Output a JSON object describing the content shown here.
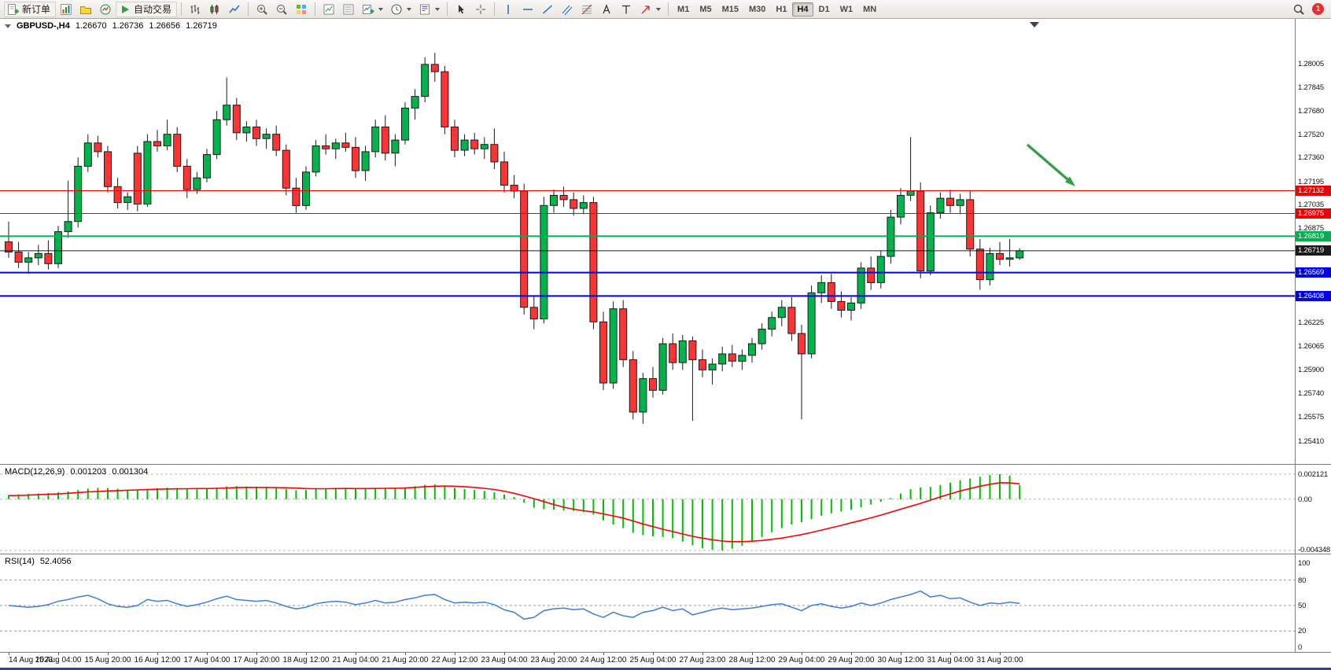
{
  "toolbar": {
    "new_order": "新订单",
    "auto_trading": "自动交易",
    "timeframes": [
      "M1",
      "M5",
      "M15",
      "M30",
      "H1",
      "H4",
      "D1",
      "W1",
      "MN"
    ],
    "active_timeframe": "H4",
    "notification_count": "1"
  },
  "chart": {
    "symbol": "GBPUSD-,H4",
    "open": "1.26670",
    "high": "1.26736",
    "low": "1.26656",
    "close": "1.26719",
    "price_axis": [
      "1.28005",
      "1.27845",
      "1.27680",
      "1.27520",
      "1.27360",
      "1.27195",
      "1.27035",
      "1.26875",
      "1.26710",
      "1.26550",
      "1.26390",
      "1.26225",
      "1.26065",
      "1.25900",
      "1.25740",
      "1.25575",
      "1.25410"
    ],
    "price_max": 1.28005,
    "price_min": 1.2541,
    "up_color": "#00b44c",
    "down_color": "#ff3333",
    "wick_color": "#1a1a1a",
    "arrow_color": "#2f9e44",
    "levels": [
      {
        "price": 1.27132,
        "label": "1.27132",
        "color": "#ee0000",
        "width": 1
      },
      {
        "price": 1.26975,
        "label": "1.26975",
        "color": "#ee0000",
        "width": 1
      },
      {
        "price": 1.26819,
        "label": "1.26819",
        "color": "#00b050",
        "width": 2
      },
      {
        "price": 1.26719,
        "label": "1.26719",
        "color": "#1a1a1a",
        "width": 1
      },
      {
        "price": 1.26569,
        "label": "1.26569",
        "color": "#0000ee",
        "width": 2
      },
      {
        "price": 1.26408,
        "label": "1.26408",
        "color": "#0000ee",
        "width": 2
      }
    ],
    "candles": [
      [
        1.2678,
        1.2692,
        1.2667,
        1.2671
      ],
      [
        1.2671,
        1.2678,
        1.266,
        1.2664
      ],
      [
        1.2664,
        1.2671,
        1.2656,
        1.2667
      ],
      [
        1.2667,
        1.2676,
        1.2662,
        1.267
      ],
      [
        1.267,
        1.2679,
        1.2659,
        1.2663
      ],
      [
        1.2663,
        1.2689,
        1.266,
        1.2685
      ],
      [
        1.2685,
        1.272,
        1.2681,
        1.2692
      ],
      [
        1.2692,
        1.2736,
        1.2688,
        1.273
      ],
      [
        1.273,
        1.2752,
        1.2726,
        1.2746
      ],
      [
        1.2746,
        1.2751,
        1.2736,
        1.274
      ],
      [
        1.274,
        1.2744,
        1.2712,
        1.2716
      ],
      [
        1.2716,
        1.2722,
        1.2701,
        1.2705
      ],
      [
        1.2705,
        1.2712,
        1.27,
        1.2709
      ],
      [
        1.2739,
        1.2744,
        1.2699,
        1.2704
      ],
      [
        1.2704,
        1.2752,
        1.2702,
        1.2747
      ],
      [
        1.2747,
        1.2755,
        1.274,
        1.2744
      ],
      [
        1.2744,
        1.2762,
        1.2741,
        1.2752
      ],
      [
        1.2752,
        1.2757,
        1.2726,
        1.273
      ],
      [
        1.273,
        1.2735,
        1.2708,
        1.2714
      ],
      [
        1.2714,
        1.2726,
        1.2711,
        1.2722
      ],
      [
        1.2722,
        1.2742,
        1.2719,
        1.2738
      ],
      [
        1.2738,
        1.2768,
        1.2735,
        1.2762
      ],
      [
        1.2762,
        1.2791,
        1.2758,
        1.2772
      ],
      [
        1.2772,
        1.2777,
        1.2748,
        1.2753
      ],
      [
        1.2753,
        1.2761,
        1.2747,
        1.2757
      ],
      [
        1.2757,
        1.2762,
        1.2744,
        1.2749
      ],
      [
        1.2749,
        1.2756,
        1.2742,
        1.2752
      ],
      [
        1.2752,
        1.2758,
        1.2737,
        1.2741
      ],
      [
        1.2741,
        1.2745,
        1.271,
        1.2715
      ],
      [
        1.2715,
        1.2722,
        1.2698,
        1.2703
      ],
      [
        1.2703,
        1.273,
        1.27,
        1.2726
      ],
      [
        1.2726,
        1.2748,
        1.2723,
        1.2744
      ],
      [
        1.2744,
        1.2752,
        1.2738,
        1.2742
      ],
      [
        1.2742,
        1.2749,
        1.2735,
        1.2746
      ],
      [
        1.2746,
        1.2753,
        1.274,
        1.2743
      ],
      [
        1.2743,
        1.275,
        1.2722,
        1.2727
      ],
      [
        1.2727,
        1.2744,
        1.272,
        1.274
      ],
      [
        1.274,
        1.2762,
        1.2736,
        1.2757
      ],
      [
        1.2757,
        1.2765,
        1.2734,
        1.2739
      ],
      [
        1.2739,
        1.2752,
        1.273,
        1.2748
      ],
      [
        1.2748,
        1.2774,
        1.2745,
        1.277
      ],
      [
        1.277,
        1.2783,
        1.2762,
        1.2778
      ],
      [
        1.2778,
        1.2805,
        1.2774,
        1.28
      ],
      [
        1.28,
        1.2808,
        1.2788,
        1.2795
      ],
      [
        1.2795,
        1.2799,
        1.2752,
        1.2757
      ],
      [
        1.2757,
        1.2762,
        1.2736,
        1.2741
      ],
      [
        1.2741,
        1.2752,
        1.2737,
        1.2748
      ],
      [
        1.2748,
        1.2753,
        1.2738,
        1.2742
      ],
      [
        1.2742,
        1.275,
        1.2735,
        1.2745
      ],
      [
        1.2745,
        1.2756,
        1.2728,
        1.2733
      ],
      [
        1.2733,
        1.274,
        1.2712,
        1.2717
      ],
      [
        1.2717,
        1.2724,
        1.2708,
        1.2713
      ],
      [
        1.2713,
        1.2718,
        1.2628,
        1.2633
      ],
      [
        1.2633,
        1.2641,
        1.2618,
        1.2625
      ],
      [
        1.2625,
        1.2709,
        1.2622,
        1.2703
      ],
      [
        1.2703,
        1.2714,
        1.2698,
        1.271
      ],
      [
        1.271,
        1.2716,
        1.2702,
        1.2707
      ],
      [
        1.2707,
        1.2712,
        1.2696,
        1.2701
      ],
      [
        1.2701,
        1.271,
        1.2697,
        1.2705
      ],
      [
        1.2705,
        1.2709,
        1.2618,
        1.2623
      ],
      [
        1.2623,
        1.263,
        1.2576,
        1.2581
      ],
      [
        1.2581,
        1.2637,
        1.2577,
        1.2632
      ],
      [
        1.2632,
        1.2638,
        1.2592,
        1.2597
      ],
      [
        1.2597,
        1.2603,
        1.2556,
        1.2561
      ],
      [
        1.2561,
        1.2588,
        1.2553,
        1.2584
      ],
      [
        1.2584,
        1.2592,
        1.2571,
        1.2576
      ],
      [
        1.2576,
        1.2612,
        1.2573,
        1.2608
      ],
      [
        1.2608,
        1.2615,
        1.259,
        1.2595
      ],
      [
        1.2595,
        1.2614,
        1.259,
        1.261
      ],
      [
        1.261,
        1.2613,
        1.2555,
        1.2597
      ],
      [
        1.2597,
        1.2604,
        1.2585,
        1.259
      ],
      [
        1.259,
        1.2598,
        1.258,
        1.2594
      ],
      [
        1.2594,
        1.2606,
        1.2589,
        1.2601
      ],
      [
        1.2601,
        1.2607,
        1.2592,
        1.2596
      ],
      [
        1.2596,
        1.2604,
        1.259,
        1.26
      ],
      [
        1.26,
        1.2612,
        1.2595,
        1.2608
      ],
      [
        1.2608,
        1.2622,
        1.2604,
        1.2618
      ],
      [
        1.2618,
        1.263,
        1.2613,
        1.2626
      ],
      [
        1.2626,
        1.2638,
        1.262,
        1.2633
      ],
      [
        1.2633,
        1.264,
        1.261,
        1.2615
      ],
      [
        1.2615,
        1.2621,
        1.2556,
        1.2601
      ],
      [
        1.2601,
        1.2648,
        1.2598,
        1.2643
      ],
      [
        1.2643,
        1.2655,
        1.2636,
        1.265
      ],
      [
        1.265,
        1.2656,
        1.2632,
        1.2637
      ],
      [
        1.2637,
        1.2644,
        1.2626,
        1.2631
      ],
      [
        1.2631,
        1.264,
        1.2624,
        1.2636
      ],
      [
        1.2636,
        1.2664,
        1.2632,
        1.266
      ],
      [
        1.266,
        1.2668,
        1.2645,
        1.265
      ],
      [
        1.265,
        1.2672,
        1.2646,
        1.2668
      ],
      [
        1.2668,
        1.27,
        1.2663,
        1.2695
      ],
      [
        1.2695,
        1.2715,
        1.269,
        1.271
      ],
      [
        1.271,
        1.275,
        1.2706,
        1.2713
      ],
      [
        1.2713,
        1.2719,
        1.2653,
        1.2658
      ],
      [
        1.2658,
        1.2703,
        1.2655,
        1.2698
      ],
      [
        1.2698,
        1.2712,
        1.2694,
        1.2708
      ],
      [
        1.2708,
        1.2714,
        1.2698,
        1.2703
      ],
      [
        1.2703,
        1.2711,
        1.2697,
        1.2707
      ],
      [
        1.2707,
        1.2713,
        1.2668,
        1.2673
      ],
      [
        1.2673,
        1.268,
        1.2645,
        1.2652
      ],
      [
        1.2652,
        1.2674,
        1.2648,
        1.267
      ],
      [
        1.267,
        1.2678,
        1.2662,
        1.2666
      ],
      [
        1.2666,
        1.268,
        1.2661,
        1.2667
      ],
      [
        1.2667,
        1.26736,
        1.26656,
        1.26719
      ]
    ]
  },
  "macd": {
    "label": "MACD(12,26,9)",
    "main_value": "0.001203",
    "signal_value": "0.001304",
    "axis": [
      "0.002121",
      "0.00",
      "-0.004348"
    ],
    "hist_color": "#00c000",
    "signal_color": "#ff0000",
    "histogram": [
      0.00035,
      0.0004,
      0.00045,
      0.00048,
      0.00052,
      0.00058,
      0.00066,
      0.00078,
      0.0009,
      0.00096,
      0.00095,
      0.00088,
      0.00082,
      0.0008,
      0.00088,
      0.00094,
      0.00098,
      0.00094,
      0.00086,
      0.00082,
      0.00088,
      0.00098,
      0.00108,
      0.0011,
      0.00108,
      0.00105,
      0.00102,
      0.00096,
      0.00086,
      0.00076,
      0.00078,
      0.00086,
      0.00092,
      0.00096,
      0.00096,
      0.0009,
      0.00088,
      0.00094,
      0.00092,
      0.00092,
      0.001,
      0.0011,
      0.00122,
      0.00126,
      0.00112,
      0.00096,
      0.00086,
      0.00078,
      0.0007,
      0.00058,
      0.0004,
      0.00018,
      -0.0003,
      -0.00072,
      -0.00085,
      -0.0009,
      -0.00096,
      -0.001,
      -0.0011,
      -0.0013,
      -0.0018,
      -0.00215,
      -0.00245,
      -0.00285,
      -0.00305,
      -0.00315,
      -0.0032,
      -0.0033,
      -0.0036,
      -0.0039,
      -0.00415,
      -0.0043,
      -0.00435,
      -0.0042,
      -0.00395,
      -0.0036,
      -0.0032,
      -0.0028,
      -0.00245,
      -0.00215,
      -0.00195,
      -0.0017,
      -0.0014,
      -0.0012,
      -0.00105,
      -0.0009,
      -0.00068,
      -0.00045,
      -0.00022,
      0.0001,
      0.00048,
      0.00085,
      0.001,
      0.00105,
      0.0012,
      0.0014,
      0.0016,
      0.00175,
      0.0019,
      0.00205,
      0.002121,
      0.002,
      0.001203
    ],
    "signal": [
      0.0003,
      0.00032,
      0.00035,
      0.00038,
      0.00042,
      0.00045,
      0.0005,
      0.00056,
      0.00062,
      0.00066,
      0.0007,
      0.00073,
      0.00076,
      0.00079,
      0.00082,
      0.00085,
      0.00087,
      0.00088,
      0.00089,
      0.0009,
      0.0009,
      0.00092,
      0.00095,
      0.00098,
      0.001,
      0.001,
      0.001,
      0.00099,
      0.00097,
      0.00094,
      0.0009,
      0.00089,
      0.00089,
      0.0009,
      0.00091,
      0.0009,
      0.0009,
      0.00091,
      0.00092,
      0.00093,
      0.00095,
      0.001,
      0.00106,
      0.0011,
      0.00112,
      0.0011,
      0.00106,
      0.001,
      0.00092,
      0.00082,
      0.00068,
      0.0005,
      0.00028,
      5e-05,
      -0.0002,
      -0.00045,
      -0.00068,
      -0.00085,
      -0.00098,
      -0.00108,
      -0.00125,
      -0.00142,
      -0.0016,
      -0.00185,
      -0.0021,
      -0.00232,
      -0.00255,
      -0.00275,
      -0.00295,
      -0.00315,
      -0.0033,
      -0.00344,
      -0.00355,
      -0.0036,
      -0.0036,
      -0.00356,
      -0.0035,
      -0.0034,
      -0.0033,
      -0.00315,
      -0.003,
      -0.00282,
      -0.00262,
      -0.00242,
      -0.00222,
      -0.002,
      -0.0018,
      -0.00158,
      -0.00135,
      -0.0011,
      -0.00085,
      -0.0006,
      -0.00035,
      -8e-05,
      0.0002,
      0.00045,
      0.0007,
      0.0009,
      0.0011,
      0.00126,
      0.0014,
      0.00138,
      0.0013
    ]
  },
  "rsi": {
    "label": "RSI(14)",
    "value": "52.4056",
    "axis": [
      "100",
      "80",
      "50",
      "20",
      "0"
    ],
    "levels": [
      80,
      50,
      20
    ],
    "line_color": "#3e7fd6",
    "values": [
      50,
      49,
      48,
      49,
      51,
      55,
      57,
      60,
      62,
      58,
      52,
      49,
      48,
      50,
      57,
      55,
      56,
      52,
      49,
      51,
      54,
      58,
      61,
      57,
      56,
      55,
      56,
      53,
      49,
      46,
      48,
      52,
      54,
      55,
      54,
      51,
      53,
      56,
      53,
      54,
      57,
      59,
      62,
      63,
      57,
      53,
      54,
      53,
      54,
      51,
      45,
      42,
      34,
      36,
      44,
      46,
      47,
      45,
      46,
      40,
      36,
      42,
      38,
      36,
      42,
      44,
      48,
      44,
      46,
      39,
      42,
      45,
      47,
      45,
      46,
      47,
      49,
      51,
      52,
      48,
      44,
      50,
      52,
      49,
      47,
      49,
      53,
      50,
      53,
      57,
      60,
      63,
      67,
      60,
      62,
      58,
      59,
      54,
      50,
      53,
      52,
      54,
      52.4
    ]
  },
  "time_axis": [
    "14 Aug 2023",
    "15 Aug 04:00",
    "15 Aug 20:00",
    "16 Aug 12:00",
    "17 Aug 04:00",
    "17 Aug 20:00",
    "18 Aug 12:00",
    "21 Aug 04:00",
    "21 Aug 20:00",
    "22 Aug 12:00",
    "23 Aug 04:00",
    "23 Aug 20:00",
    "24 Aug 12:00",
    "25 Aug 04:00",
    "27 Aug 23:00",
    "28 Aug 12:00",
    "29 Aug 04:00",
    "29 Aug 20:00",
    "30 Aug 12:00",
    "31 Aug 04:00",
    "31 Aug 20:00"
  ]
}
